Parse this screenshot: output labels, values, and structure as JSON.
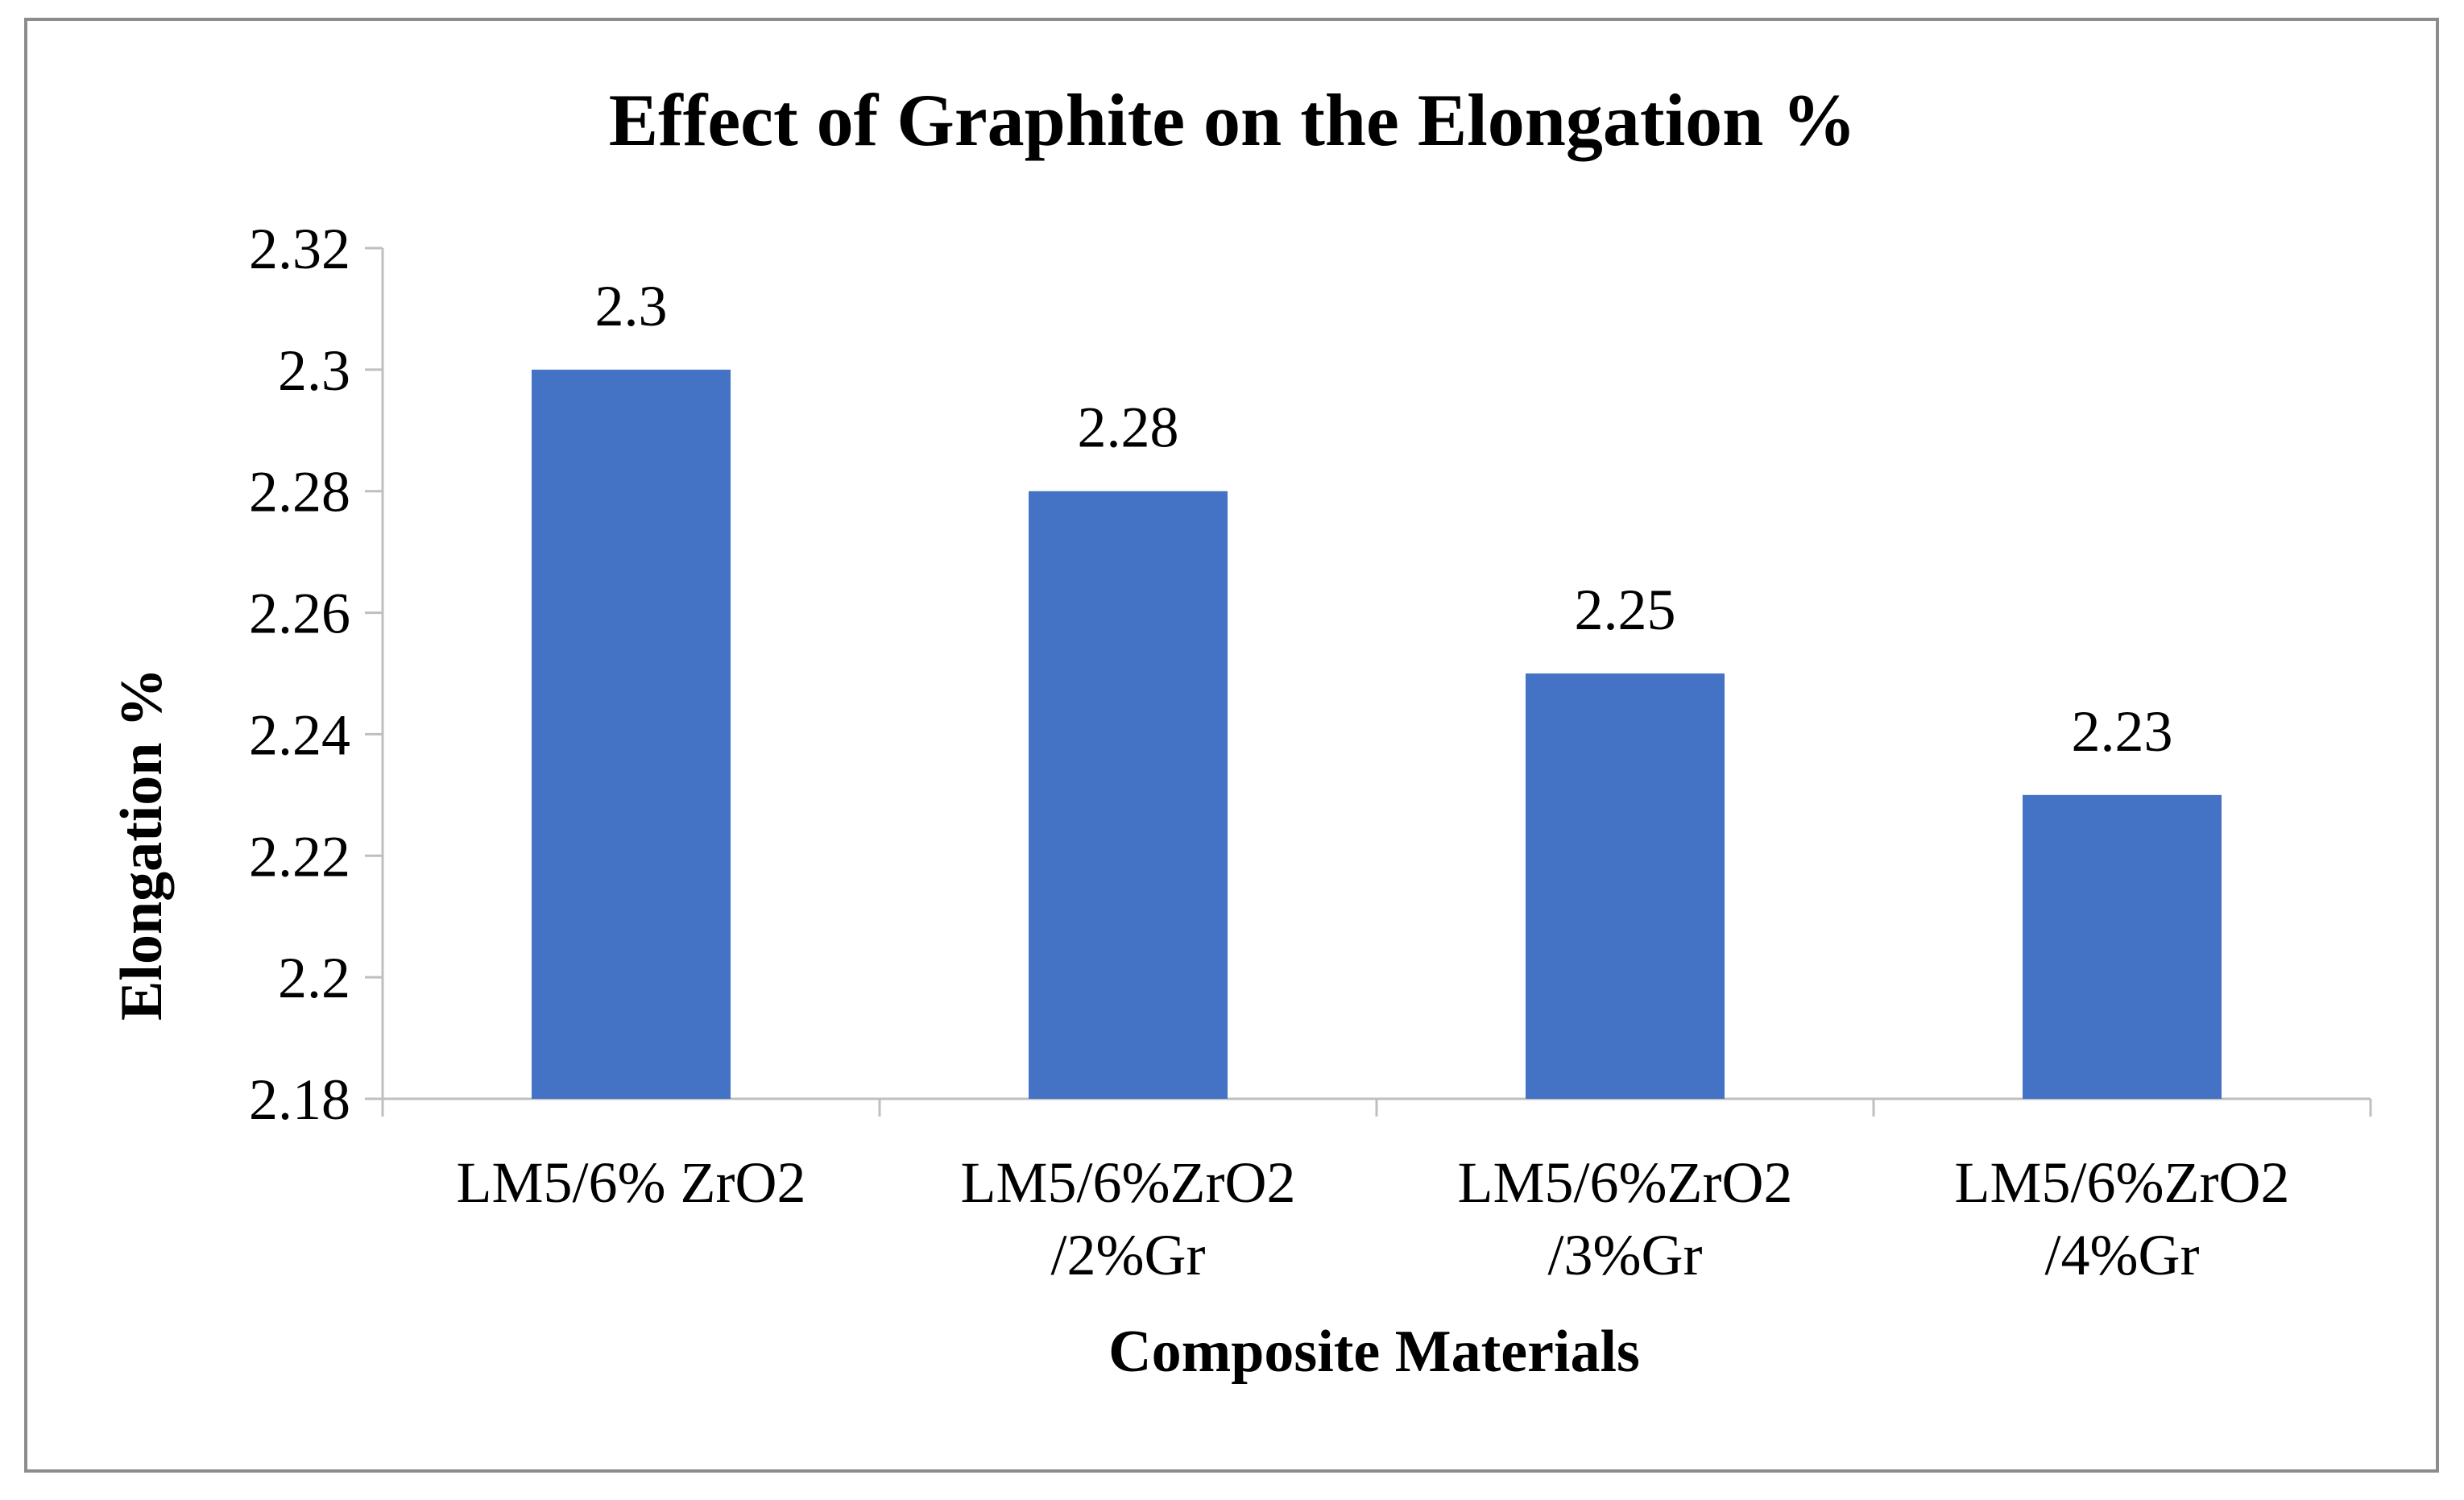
{
  "chart_data": {
    "type": "bar",
    "title": "Effect of Graphite on the Elongation %",
    "xlabel": "Composite Materials",
    "ylabel": "Elongation %",
    "categories": [
      [
        "LM5/6% ZrO2"
      ],
      [
        "LM5/6%ZrO2",
        "/2%Gr"
      ],
      [
        "LM5/6%ZrO2",
        "/3%Gr"
      ],
      [
        "LM5/6%ZrO2",
        "/4%Gr"
      ]
    ],
    "values": [
      2.3,
      2.28,
      2.25,
      2.23
    ],
    "data_labels": [
      "2.3",
      "2.28",
      "2.25",
      "2.23"
    ],
    "yticks": [
      "2.18",
      "2.2",
      "2.22",
      "2.24",
      "2.26",
      "2.28",
      "2.3",
      "2.32"
    ],
    "ylim": [
      2.18,
      2.32
    ],
    "bar_color": "#4472c4",
    "grid": false,
    "legend": "none"
  }
}
